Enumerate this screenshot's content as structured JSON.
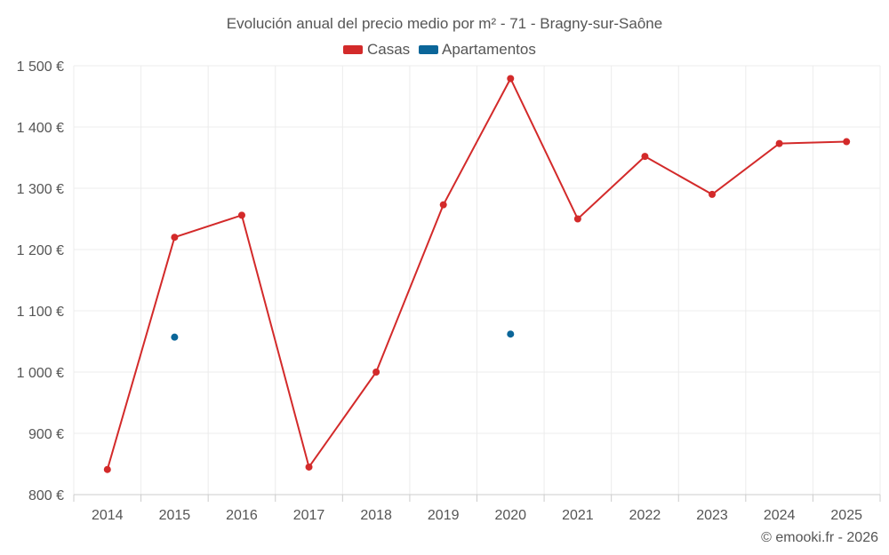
{
  "chart_data": {
    "type": "line",
    "title": "Evolución anual del precio medio por m² - 71 - Bragny-sur-Saône",
    "categories": [
      "2014",
      "2015",
      "2016",
      "2017",
      "2018",
      "2019",
      "2020",
      "2021",
      "2022",
      "2023",
      "2024",
      "2025"
    ],
    "series": [
      {
        "name": "Casas",
        "color": "#d32a2a",
        "values": [
          841,
          1220,
          1256,
          845,
          1000,
          1273,
          1479,
          1250,
          1352,
          1290,
          1373,
          1376
        ]
      },
      {
        "name": "Apartamentos",
        "color": "#0b6699",
        "values": [
          null,
          1057,
          null,
          null,
          null,
          null,
          1062,
          null,
          null,
          null,
          null,
          null
        ]
      }
    ],
    "y_ticks": [
      800,
      900,
      1000,
      1100,
      1200,
      1300,
      1400,
      1500
    ],
    "y_tick_labels": [
      "800 €",
      "900 €",
      "1 000 €",
      "1 100 €",
      "1 200 €",
      "1 300 €",
      "1 400 €",
      "1 500 €"
    ],
    "ylim": [
      800,
      1500
    ],
    "xlabel": "",
    "ylabel": "",
    "grid": true,
    "legend_position": "top-center"
  },
  "credit": "© emooki.fr - 2026"
}
